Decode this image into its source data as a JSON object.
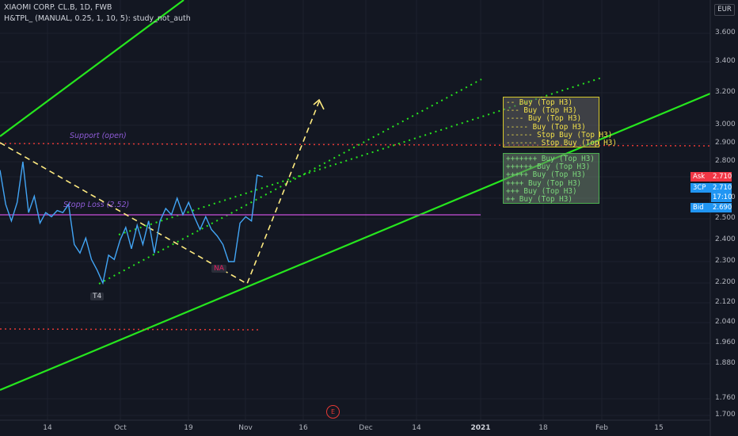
{
  "header": {
    "symbol_line": "XIAOMI CORP. CL.B, 1D, FWB",
    "indicator_line": "H&TPL_ (MANUAL, 0.25, 1, 10, 5): study_not_auth"
  },
  "currency": "EUR",
  "chart_data": {
    "type": "line",
    "title": "XIAOMI CORP. CL.B, 1D, FWB",
    "yticks": [
      "3.600",
      "3.400",
      "3.200",
      "3.000",
      "2.900",
      "2.800",
      "2.710",
      "2.600",
      "2.500",
      "2.400",
      "2.300",
      "2.200",
      "2.120",
      "2.040",
      "1.960",
      "1.880",
      "1.760",
      "1.700"
    ],
    "xticks": [
      {
        "label": "14",
        "bold": false
      },
      {
        "label": "Oct",
        "bold": false
      },
      {
        "label": "19",
        "bold": false
      },
      {
        "label": "Nov",
        "bold": false
      },
      {
        "label": "16",
        "bold": false
      },
      {
        "label": "Dec",
        "bold": false
      },
      {
        "label": "14",
        "bold": false
      },
      {
        "label": "2021",
        "bold": true
      },
      {
        "label": "18",
        "bold": false
      },
      {
        "label": "Feb",
        "bold": false
      },
      {
        "label": "15",
        "bold": false
      }
    ],
    "price_series": [
      2.75,
      2.57,
      2.49,
      2.58,
      2.8,
      2.53,
      2.61,
      2.48,
      2.53,
      2.51,
      2.54,
      2.53,
      2.57,
      2.38,
      2.34,
      2.41,
      2.31,
      2.26,
      2.2,
      2.33,
      2.31,
      2.4,
      2.46,
      2.36,
      2.47,
      2.38,
      2.49,
      2.34,
      2.49,
      2.55,
      2.52,
      2.6,
      2.52,
      2.58,
      2.51,
      2.45,
      2.51,
      2.45,
      2.42,
      2.38,
      2.3,
      2.3,
      2.48,
      2.51,
      2.49,
      2.72,
      2.71
    ],
    "support_open": 2.9,
    "stop_loss": 2.52,
    "lower_level": 2.01
  },
  "labels": {
    "support": "Support (open)",
    "stop_loss": "Stopp Loss (2.52)",
    "t4": "T4",
    "na": "NA",
    "event": "E"
  },
  "price_tags": [
    {
      "label": "Ask",
      "value": "2.710",
      "color": "#f23645"
    },
    {
      "label": "3CP",
      "value": "2.710",
      "color": "#2196f3"
    },
    {
      "label": "",
      "value": "17:10",
      "color": "#2196f3"
    },
    {
      "label": "Bid",
      "value": "2.690",
      "color": "#2196f3"
    }
  ],
  "box_top": [
    "-- Buy (Top H3)",
    "--- Buy (Top H3)",
    "---- Buy (Top H3)",
    "----- Buy (Top H3)",
    "------ Stop Buy (Top H3)",
    "------- Stop Buy (Top H3)"
  ],
  "box_bottom": [
    "+++++++ Buy (Top H3)",
    "++++++ Buy (Top H3)",
    "+++++ Buy (Top H3)",
    "++++ Buy (Top H3)",
    "+++ Buy (Top H3)",
    "++ Buy (Top H3)"
  ],
  "colors": {
    "price_line": "#42a5f5",
    "channel": "#26e61e",
    "support": "#e53935",
    "stop_loss": "#ab47bc",
    "projection": "#ffeb80"
  }
}
